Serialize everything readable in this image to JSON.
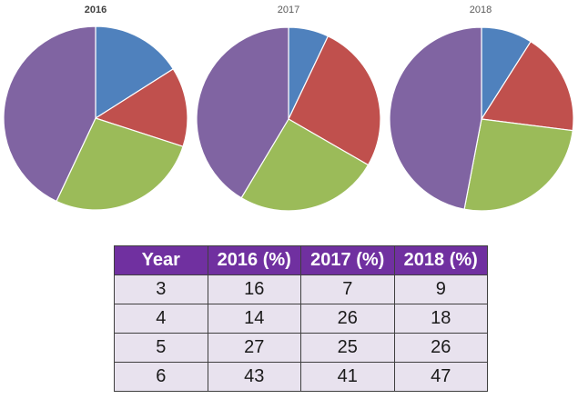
{
  "chart_data": [
    {
      "type": "pie",
      "title": "2016",
      "categories": [
        "3",
        "4",
        "5",
        "6"
      ],
      "values": [
        16,
        14,
        27,
        43
      ]
    },
    {
      "type": "pie",
      "title": "2017",
      "categories": [
        "3",
        "4",
        "5",
        "6"
      ],
      "values": [
        7,
        26,
        25,
        41
      ]
    },
    {
      "type": "pie",
      "title": "2018",
      "categories": [
        "3",
        "4",
        "5",
        "6"
      ],
      "values": [
        9,
        18,
        26,
        47
      ]
    }
  ],
  "slice_colors": [
    "#4f81bd",
    "#c0504d",
    "#9bbb59",
    "#8064a2"
  ],
  "table": {
    "headers": [
      "Year",
      "2016 (%)",
      "2017 (%)",
      "2018 (%)"
    ],
    "rows": [
      [
        "3",
        "16",
        "7",
        "9"
      ],
      [
        "4",
        "14",
        "26",
        "18"
      ],
      [
        "5",
        "27",
        "25",
        "26"
      ],
      [
        "6",
        "43",
        "41",
        "47"
      ]
    ],
    "header_color": "#7030a0",
    "cell_color": "#e8e2ee"
  }
}
